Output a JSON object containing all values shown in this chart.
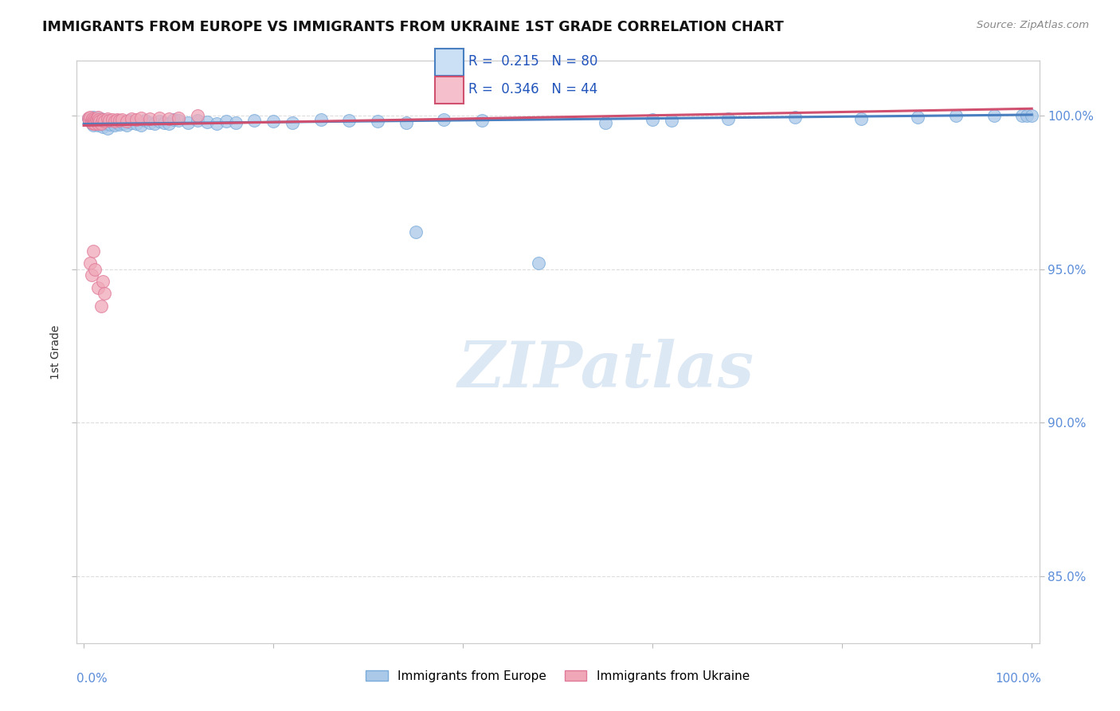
{
  "title": "IMMIGRANTS FROM EUROPE VS IMMIGRANTS FROM UKRAINE 1ST GRADE CORRELATION CHART",
  "source": "Source: ZipAtlas.com",
  "ylabel": "1st Grade",
  "ymin": 0.828,
  "ymax": 1.018,
  "xmin": -0.008,
  "xmax": 1.008,
  "R_blue": 0.215,
  "N_blue": 80,
  "R_pink": 0.346,
  "N_pink": 44,
  "blue_color": "#aac8e8",
  "blue_edge_color": "#7aabda",
  "blue_line_color": "#4a7fc0",
  "pink_color": "#f0a8b8",
  "pink_edge_color": "#e07898",
  "pink_line_color": "#d05070",
  "legend_box_blue": "#cce0f5",
  "legend_box_pink": "#f5c0cc",
  "watermark_color": "#dde8f5",
  "ytick_positions": [
    0.85,
    0.9,
    0.95,
    1.0
  ],
  "ytick_labels": [
    "85.0%",
    "90.0%",
    "95.0%",
    "100.0%"
  ],
  "blue_x": [
    0.005,
    0.006,
    0.007,
    0.008,
    0.008,
    0.009,
    0.01,
    0.01,
    0.011,
    0.012,
    0.012,
    0.013,
    0.014,
    0.014,
    0.015,
    0.015,
    0.016,
    0.017,
    0.018,
    0.018,
    0.019,
    0.02,
    0.02,
    0.021,
    0.022,
    0.023,
    0.025,
    0.025,
    0.027,
    0.028,
    0.03,
    0.032,
    0.033,
    0.035,
    0.036,
    0.038,
    0.04,
    0.042,
    0.045,
    0.048,
    0.05,
    0.055,
    0.06,
    0.065,
    0.07,
    0.075,
    0.08,
    0.085,
    0.09,
    0.095,
    0.1,
    0.11,
    0.12,
    0.13,
    0.14,
    0.15,
    0.16,
    0.18,
    0.2,
    0.22,
    0.25,
    0.28,
    0.31,
    0.34,
    0.38,
    0.42,
    0.55,
    0.6,
    0.62,
    0.68,
    0.75,
    0.82,
    0.88,
    0.92,
    0.96,
    0.99,
    0.995,
    1.0,
    0.35,
    0.48
  ],
  "blue_y": [
    0.999,
    0.9985,
    0.9992,
    0.9988,
    0.998,
    0.9975,
    0.9995,
    0.997,
    0.9985,
    0.999,
    0.9978,
    0.9982,
    0.9988,
    0.9975,
    0.9992,
    0.9968,
    0.9985,
    0.9978,
    0.999,
    0.9972,
    0.9985,
    0.998,
    0.9965,
    0.9988,
    0.9975,
    0.9982,
    0.9978,
    0.996,
    0.9985,
    0.9972,
    0.998,
    0.9975,
    0.9968,
    0.9985,
    0.9978,
    0.9972,
    0.9982,
    0.9975,
    0.9968,
    0.9985,
    0.9978,
    0.9975,
    0.9968,
    0.9985,
    0.9978,
    0.9975,
    0.9982,
    0.9978,
    0.9975,
    0.9988,
    0.9985,
    0.9978,
    0.9985,
    0.998,
    0.9975,
    0.9982,
    0.9978,
    0.9985,
    0.9982,
    0.9978,
    0.9988,
    0.9985,
    0.9982,
    0.9978,
    0.9988,
    0.9985,
    0.9978,
    0.9988,
    0.9985,
    0.999,
    0.9995,
    0.999,
    0.9995,
    1.0,
    1.0,
    1.0,
    1.0,
    1.0,
    0.962,
    0.952
  ],
  "pink_x": [
    0.005,
    0.006,
    0.007,
    0.008,
    0.008,
    0.009,
    0.01,
    0.01,
    0.011,
    0.012,
    0.012,
    0.013,
    0.014,
    0.015,
    0.015,
    0.016,
    0.017,
    0.018,
    0.02,
    0.022,
    0.025,
    0.027,
    0.03,
    0.033,
    0.035,
    0.038,
    0.04,
    0.045,
    0.05,
    0.055,
    0.06,
    0.07,
    0.08,
    0.09,
    0.1,
    0.12,
    0.007,
    0.008,
    0.01,
    0.012,
    0.015,
    0.018,
    0.02,
    0.022
  ],
  "pink_y": [
    0.9992,
    0.9988,
    0.9995,
    0.9985,
    0.9978,
    0.999,
    0.9982,
    0.9975,
    0.9988,
    0.9982,
    0.9975,
    0.9988,
    0.9982,
    0.9995,
    0.9975,
    0.9988,
    0.9982,
    0.9975,
    0.9988,
    0.9982,
    0.999,
    0.9985,
    0.9988,
    0.9982,
    0.9988,
    0.9985,
    0.9988,
    0.9982,
    0.999,
    0.9988,
    0.9992,
    0.999,
    0.9992,
    0.999,
    0.9992,
    1.0,
    0.952,
    0.948,
    0.956,
    0.95,
    0.944,
    0.938,
    0.946,
    0.942
  ]
}
